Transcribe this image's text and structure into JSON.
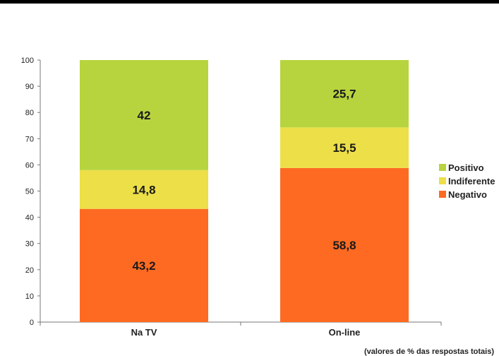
{
  "chart_data": {
    "type": "bar",
    "stacked": true,
    "categories": [
      "Na TV",
      "On-line"
    ],
    "series": [
      {
        "name": "Negativo",
        "values": [
          43.2,
          58.8
        ],
        "labels": [
          "43,2",
          "58,8"
        ],
        "color": "#fe6a22"
      },
      {
        "name": "Indiferente",
        "values": [
          14.8,
          15.5
        ],
        "labels": [
          "14,8",
          "15,5"
        ],
        "color": "#eddf48"
      },
      {
        "name": "Positivo",
        "values": [
          42,
          25.7
        ],
        "labels": [
          "42",
          "25,7"
        ],
        "color": "#b7d43e"
      }
    ],
    "legend": {
      "placement": "right",
      "order": [
        "Positivo",
        "Indiferente",
        "Negativo"
      ],
      "labels": [
        "Positivo",
        "Indiferente",
        "Negativo"
      ]
    },
    "yticks": [
      "0",
      "10",
      "20",
      "30",
      "40",
      "50",
      "60",
      "70",
      "80",
      "90",
      "100"
    ],
    "ylim": [
      0,
      100
    ],
    "grid": false,
    "note": "(valores de % das respostas totais)"
  }
}
